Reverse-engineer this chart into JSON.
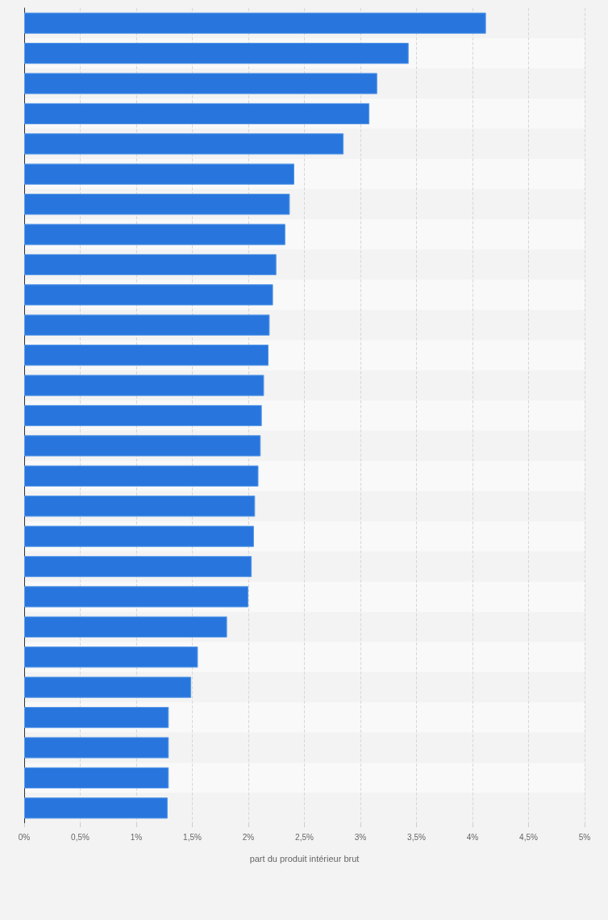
{
  "chart_data": {
    "type": "bar",
    "orientation": "horizontal",
    "xlabel": "part du produit intérieur brut",
    "categories": [
      null,
      null,
      null,
      null,
      null,
      null,
      null,
      null,
      null,
      null,
      null,
      null,
      null,
      null,
      null,
      null,
      null,
      null,
      null,
      null,
      null,
      null,
      null,
      null,
      null,
      null,
      null
    ],
    "values": [
      4.12,
      3.43,
      3.15,
      3.08,
      2.85,
      2.41,
      2.37,
      2.33,
      2.25,
      2.22,
      2.19,
      2.18,
      2.14,
      2.12,
      2.11,
      2.09,
      2.06,
      2.05,
      2.03,
      2.0,
      1.81,
      1.55,
      1.49,
      1.29,
      1.29,
      1.29,
      1.28
    ],
    "color": "#2876dd",
    "xlim": [
      0,
      5
    ],
    "xticks": [
      {
        "value": 0,
        "label": "0%"
      },
      {
        "value": 0.5,
        "label": "0,5%"
      },
      {
        "value": 1,
        "label": "1%"
      },
      {
        "value": 1.5,
        "label": "1,5%"
      },
      {
        "value": 2,
        "label": "2%"
      },
      {
        "value": 2.5,
        "label": "2,5%"
      },
      {
        "value": 3,
        "label": "3%"
      },
      {
        "value": 3.5,
        "label": "3,5%"
      },
      {
        "value": 4,
        "label": "4%"
      },
      {
        "value": 4.5,
        "label": "4,5%"
      },
      {
        "value": 5,
        "label": "5%"
      }
    ],
    "grid": "x"
  }
}
